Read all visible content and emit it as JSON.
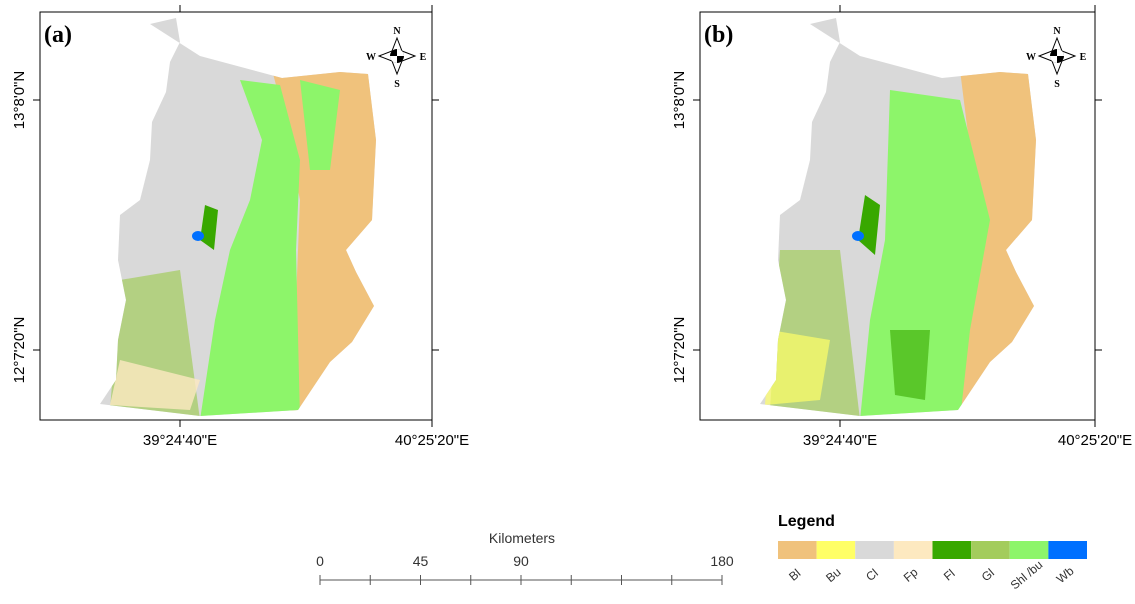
{
  "panels": [
    {
      "label": "(a)"
    },
    {
      "label": "(b)"
    }
  ],
  "north_arrow": {
    "n": "N",
    "s": "S",
    "e": "E",
    "w": "W"
  },
  "axes": {
    "x_labels": [
      "39°24'40\"E",
      "40°25'20\"E"
    ],
    "y_labels": [
      "13°8'0\"N",
      "12°7'20\"N"
    ]
  },
  "scale_bar": {
    "title": "Kilometers",
    "ticks": [
      0,
      45,
      90,
      180
    ]
  },
  "legend": {
    "title": "Legend",
    "items": [
      {
        "label": "Bl",
        "color": "#f0c27c"
      },
      {
        "label": "Bu",
        "color": "#ffff66"
      },
      {
        "label": "Cl",
        "color": "#d9d9d9"
      },
      {
        "label": "Fp",
        "color": "#fde9c0"
      },
      {
        "label": "Fl",
        "color": "#38a800"
      },
      {
        "label": "Gl",
        "color": "#a3cc5c"
      },
      {
        "label": "Shl /bu",
        "color": "#8df56a"
      },
      {
        "label": "Wb",
        "color": "#0070ff"
      }
    ]
  }
}
